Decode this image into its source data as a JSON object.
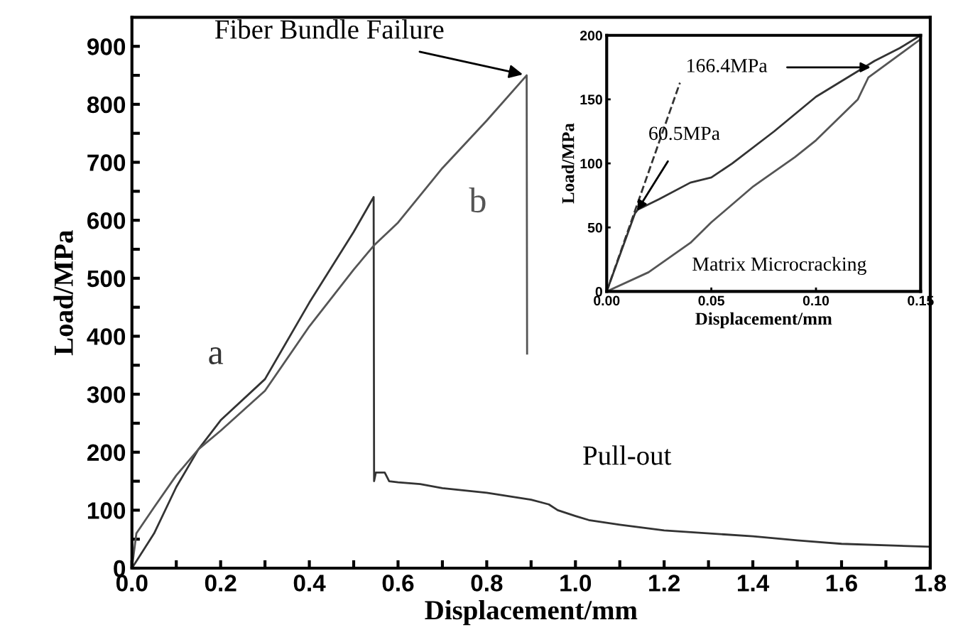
{
  "chart_data": [
    {
      "type": "line",
      "xlabel": "Displacement/mm",
      "ylabel": "Load/MPa",
      "xlim": [
        0,
        1.8
      ],
      "ylim": [
        0,
        950
      ],
      "xticks": [
        {
          "value": 0,
          "label": "0.0"
        },
        {
          "value": 0.1,
          "label": null
        },
        0.2,
        {
          "value": 0.3,
          "label": null
        },
        0.4,
        {
          "value": 0.5,
          "label": null
        },
        0.6,
        {
          "value": 0.7,
          "label": null
        },
        0.8,
        {
          "value": 0.9,
          "label": null
        },
        {
          "value": 1,
          "label": "1.0"
        },
        {
          "value": 1.1,
          "label": null
        },
        1.2,
        {
          "value": 1.3,
          "label": null
        },
        1.4,
        {
          "value": 1.5,
          "label": null
        },
        1.6,
        {
          "value": 1.7,
          "label": null
        },
        1.8
      ],
      "yticks": [
        0,
        {
          "value": 50,
          "label": null
        },
        100,
        {
          "value": 150,
          "label": null
        },
        200,
        {
          "value": 250,
          "label": null
        },
        300,
        {
          "value": 350,
          "label": null
        },
        400,
        {
          "value": 450,
          "label": null
        },
        500,
        {
          "value": 550,
          "label": null
        },
        600,
        {
          "value": 650,
          "label": null
        },
        700,
        {
          "value": 750,
          "label": null
        },
        800,
        {
          "value": 850,
          "label": null
        },
        900
      ],
      "grid": false,
      "legend": false,
      "marker": "none",
      "line_style": "solid",
      "series": [
        {
          "name": "a",
          "color": "#333333",
          "x": [
            0,
            0.05,
            0.1,
            0.15,
            0.2,
            0.3,
            0.4,
            0.5,
            0.545,
            0.546,
            0.55,
            0.57,
            0.58,
            0.6,
            0.65,
            0.7,
            0.8,
            0.9,
            0.94,
            0.96,
            1.0,
            1.03,
            1.1,
            1.2,
            1.4,
            1.5,
            1.6,
            1.8
          ],
          "values": [
            0,
            60,
            140,
            205,
            255,
            326,
            458,
            580,
            640,
            150,
            165,
            165,
            150,
            148,
            145,
            138,
            130,
            118,
            110,
            100,
            90,
            83,
            75,
            65,
            55,
            48,
            42,
            37
          ]
        },
        {
          "name": "b",
          "color": "#555555",
          "x": [
            0,
            0.01,
            0.05,
            0.1,
            0.15,
            0.2,
            0.3,
            0.4,
            0.5,
            0.545,
            0.6,
            0.7,
            0.8,
            0.89,
            0.891
          ],
          "values": [
            0,
            60,
            105,
            160,
            205,
            237,
            306,
            417,
            515,
            556,
            596,
            690,
            772,
            850,
            370
          ]
        }
      ],
      "annotations": [
        {
          "text": "Fiber Bundle Failure",
          "x": 0.89,
          "y": 850
        },
        "Pull-out"
      ]
    },
    {
      "type": "line",
      "xlabel": "Displacement/mm",
      "ylabel": "Load/MPa",
      "xlim": [
        0,
        0.15
      ],
      "ylim": [
        0,
        200
      ],
      "xticks": [
        {
          "value": 0,
          "label": "0.00"
        },
        0.05,
        {
          "value": 0.1,
          "label": "0.10"
        },
        0.15
      ],
      "yticks": [
        0,
        50,
        100,
        150,
        200
      ],
      "grid": false,
      "legend": false,
      "marker": "none",
      "series": [
        {
          "color": "#333333",
          "x": [
            0,
            0.0135,
            0.015,
            0.025,
            0.04,
            0.05,
            0.06,
            0.08,
            0.1,
            0.12,
            0.128,
            0.14,
            0.15
          ],
          "values": [
            0,
            61,
            64,
            72,
            85,
            89,
            100,
            125,
            152,
            172,
            180,
            190,
            200
          ]
        },
        {
          "color": "#555555",
          "x": [
            0,
            0.02,
            0.04,
            0.05,
            0.07,
            0.09,
            0.1,
            0.12,
            0.125,
            0.15
          ],
          "values": [
            0,
            15,
            38,
            54,
            82,
            105,
            118,
            150,
            167,
            197
          ]
        },
        {
          "color": "#333333",
          "line_style": "dashed",
          "x": [
            0,
            0.035
          ],
          "values": [
            0,
            163
          ]
        }
      ],
      "annotations": [
        {
          "text": "166.4MPa",
          "x": 0.128,
          "y": 175
        },
        {
          "text": "60.5MPa",
          "x": 0.0135,
          "y": 60.5
        },
        "Matrix Microcracking"
      ]
    }
  ]
}
